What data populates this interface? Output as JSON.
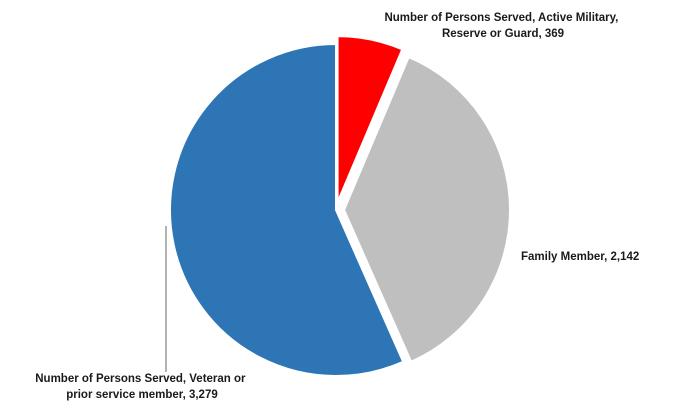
{
  "chart_data": {
    "type": "pie",
    "title": "",
    "start": "12 o'clock",
    "direction": "clockwise",
    "legend": "none",
    "series": [
      {
        "name": "",
        "slices": [
          {
            "label_lines": [
              "Number of Persons Served, Active Military,",
              "Reserve or Guard, 369"
            ],
            "category": "Number of Persons Served, Active Military, Reserve or Guard",
            "value": 369,
            "color": "#ff0000",
            "exploded": true
          },
          {
            "label_lines": [
              "Family Member, 2,142"
            ],
            "category": "Family Member",
            "value": 2142,
            "color": "#bfbfbf",
            "exploded": true
          },
          {
            "label_lines": [
              "Number of Persons Served, Veteran or",
              "prior service member, 3,279"
            ],
            "category": "Number of Persons Served, Veteran or prior service member",
            "value": 3279,
            "color": "#2e75b6",
            "exploded": false
          }
        ]
      }
    ]
  }
}
